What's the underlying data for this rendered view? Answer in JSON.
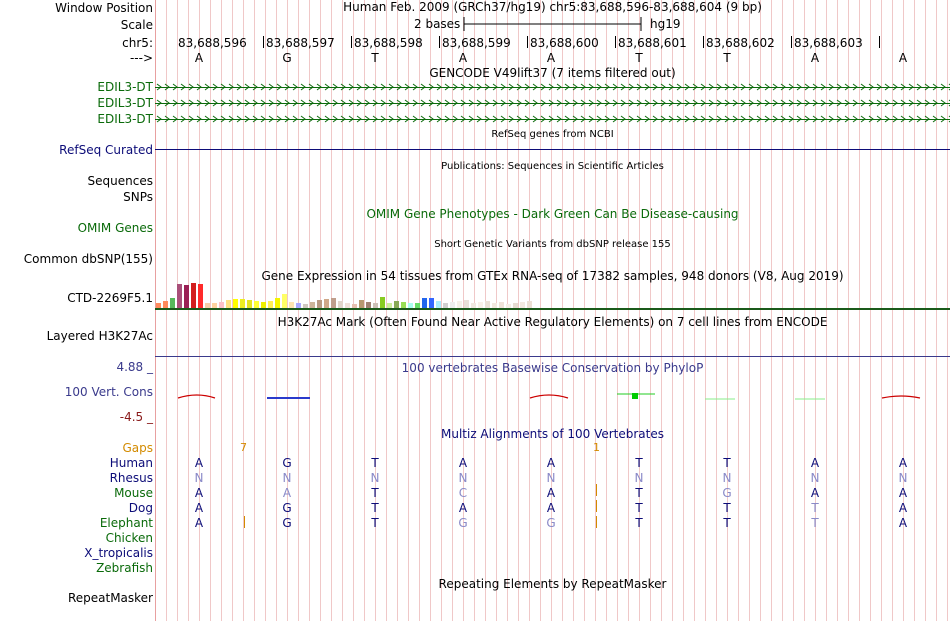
{
  "colors": {
    "gencode": "#0a6a0a",
    "refseq": "#0c0c78",
    "omim": "#0a6a0a",
    "phylop": "#3a3a8c",
    "maf_title": "#0c0c78",
    "gaps": "#d38b00",
    "grid": "#f0c8c8"
  },
  "header": {
    "window_position_label": "Window Position",
    "scale_label": "Scale",
    "chrom_label": "chr5:",
    "strand_label": "--->",
    "position_text": "Human Feb. 2009 (GRCh37/hg19)   chr5:83,688,596-83,688,604 (9 bp)",
    "scale_text": "2 bases",
    "assembly": "hg19"
  },
  "ruler": [
    "83,688,596",
    "83,688,597",
    "83,688,598",
    "83,688,599",
    "83,688,600",
    "83,688,601",
    "83,688,602",
    "83,688,603"
  ],
  "sequence": [
    "A",
    "G",
    "T",
    "A",
    "A",
    "T",
    "T",
    "A",
    "A"
  ],
  "tracks": {
    "gencode_title": "GENCODE V49lift37 (7 items filtered out)",
    "gencode_items": [
      "EDIL3-DT",
      "EDIL3-DT",
      "EDIL3-DT"
    ],
    "refseq_title": "RefSeq genes from NCBI",
    "refseq_label": "RefSeq Curated",
    "pubs_title": "Publications: Sequences in Scientific Articles",
    "pubs_labels": [
      "Sequences",
      "SNPs"
    ],
    "omim_title": "OMIM Gene Phenotypes - Dark Green Can Be Disease-causing",
    "omim_label": "OMIM Genes",
    "dbsnp_title": "Short Genetic Variants from dbSNP release 155",
    "dbsnp_label": "Common dbSNP(155)",
    "gtex_title": "Gene Expression in 54 tissues from GTEx RNA-seq of 17382 samples, 948 donors (V8, Aug 2019)",
    "gtex_label": "CTD-2269F5.1",
    "h3k27ac_title": "H3K27Ac Mark (Often Found Near Active Regulatory Elements) on 7 cell lines from ENCODE",
    "h3k27ac_label": "Layered H3K27Ac",
    "phylop_title": "100 vertebrates Basewise Conservation by PhyloP",
    "phylop_label": "100 Vert. Cons",
    "phylop_max": "4.88 _",
    "phylop_min": "-4.5 _",
    "maf_title": "Multiz Alignments of 100 Vertebrates",
    "gaps_label": "Gaps",
    "gap_counts": [
      "7",
      "1"
    ],
    "species": [
      {
        "name": "Human",
        "bases": [
          "A",
          "G",
          "T",
          "A",
          "A",
          "T",
          "T",
          "A",
          "A"
        ]
      },
      {
        "name": "Rhesus",
        "bases": [
          "N",
          "N",
          "N",
          "N",
          "N",
          "N",
          "N",
          "N",
          "N"
        ]
      },
      {
        "name": "Mouse",
        "bases": [
          "A",
          "A",
          "T",
          "C",
          "A",
          "T",
          "G",
          "A",
          "A"
        ]
      },
      {
        "name": "Dog",
        "bases": [
          "A",
          "G",
          "T",
          "A",
          "A",
          "T",
          "T",
          "T",
          "A"
        ]
      },
      {
        "name": "Elephant",
        "bases": [
          "A",
          "G",
          "T",
          "G",
          "G",
          "T",
          "T",
          "T",
          "A"
        ]
      },
      {
        "name": "Chicken",
        "bases": []
      },
      {
        "name": "X_tropicalis",
        "bases": []
      },
      {
        "name": "Zebrafish",
        "bases": []
      }
    ],
    "rmsk_title": "Repeating Elements by RepeatMasker",
    "rmsk_label": "RepeatMasker"
  }
}
